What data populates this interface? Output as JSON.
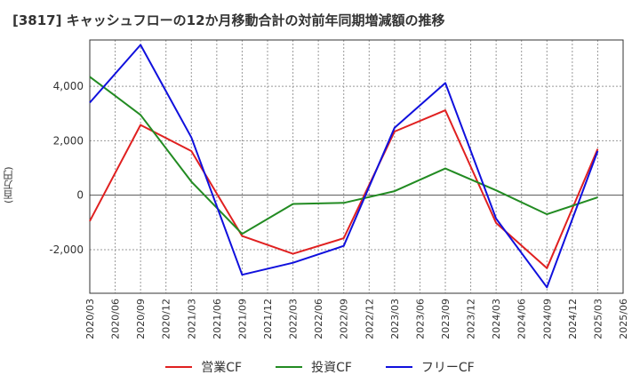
{
  "chart_data": {
    "type": "line",
    "title": "[3817]  キャッシュフローの12か月移動合計の対前年同期増減額の推移",
    "ylabel": "(百万円)",
    "ylim": [
      -3600,
      5700
    ],
    "yticks": [
      -2000,
      0,
      2000,
      4000
    ],
    "ytick_labels": [
      "-2,000",
      "0",
      "2,000",
      "4,000"
    ],
    "x": [
      "2020/03",
      "2020/06",
      "2020/09",
      "2020/12",
      "2021/03",
      "2021/06",
      "2021/09",
      "2021/12",
      "2022/03",
      "2022/06",
      "2022/09",
      "2022/12",
      "2023/03",
      "2023/06",
      "2023/09",
      "2023/12",
      "2024/03",
      "2024/06",
      "2024/09",
      "2024/12",
      "2025/03",
      "2025/06"
    ],
    "grid": true,
    "legend_position": "bottom",
    "series": [
      {
        "name": "営業CF",
        "color": "#e02020",
        "points": [
          [
            "2020/03",
            -950
          ],
          [
            "2020/09",
            2580
          ],
          [
            "2021/03",
            1620
          ],
          [
            "2021/09",
            -1500
          ],
          [
            "2022/03",
            -2150
          ],
          [
            "2022/09",
            -1580
          ],
          [
            "2023/03",
            2340
          ],
          [
            "2023/09",
            3120
          ],
          [
            "2024/03",
            -1020
          ],
          [
            "2024/09",
            -2680
          ],
          [
            "2025/03",
            1700
          ]
        ]
      },
      {
        "name": "投資CF",
        "color": "#228b22",
        "points": [
          [
            "2020/03",
            4350
          ],
          [
            "2020/09",
            2950
          ],
          [
            "2021/03",
            500
          ],
          [
            "2021/09",
            -1420
          ],
          [
            "2022/03",
            -320
          ],
          [
            "2022/09",
            -280
          ],
          [
            "2023/03",
            150
          ],
          [
            "2023/09",
            980
          ],
          [
            "2024/03",
            180
          ],
          [
            "2024/09",
            -700
          ],
          [
            "2025/03",
            -80
          ]
        ]
      },
      {
        "name": "フリーCF",
        "color": "#1010dd",
        "points": [
          [
            "2020/03",
            3400
          ],
          [
            "2020/09",
            5520
          ],
          [
            "2021/03",
            2120
          ],
          [
            "2021/09",
            -2920
          ],
          [
            "2022/03",
            -2480
          ],
          [
            "2022/09",
            -1860
          ],
          [
            "2023/03",
            2480
          ],
          [
            "2023/09",
            4120
          ],
          [
            "2024/03",
            -860
          ],
          [
            "2024/09",
            -3380
          ],
          [
            "2025/03",
            1620
          ]
        ]
      }
    ]
  }
}
